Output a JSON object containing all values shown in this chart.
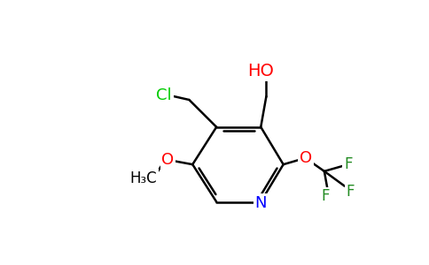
{
  "background_color": "#ffffff",
  "bond_color": "#000000",
  "atom_colors": {
    "N": "#0000ff",
    "O": "#ff0000",
    "Cl": "#00cc00",
    "F": "#228b22",
    "C": "#000000"
  }
}
